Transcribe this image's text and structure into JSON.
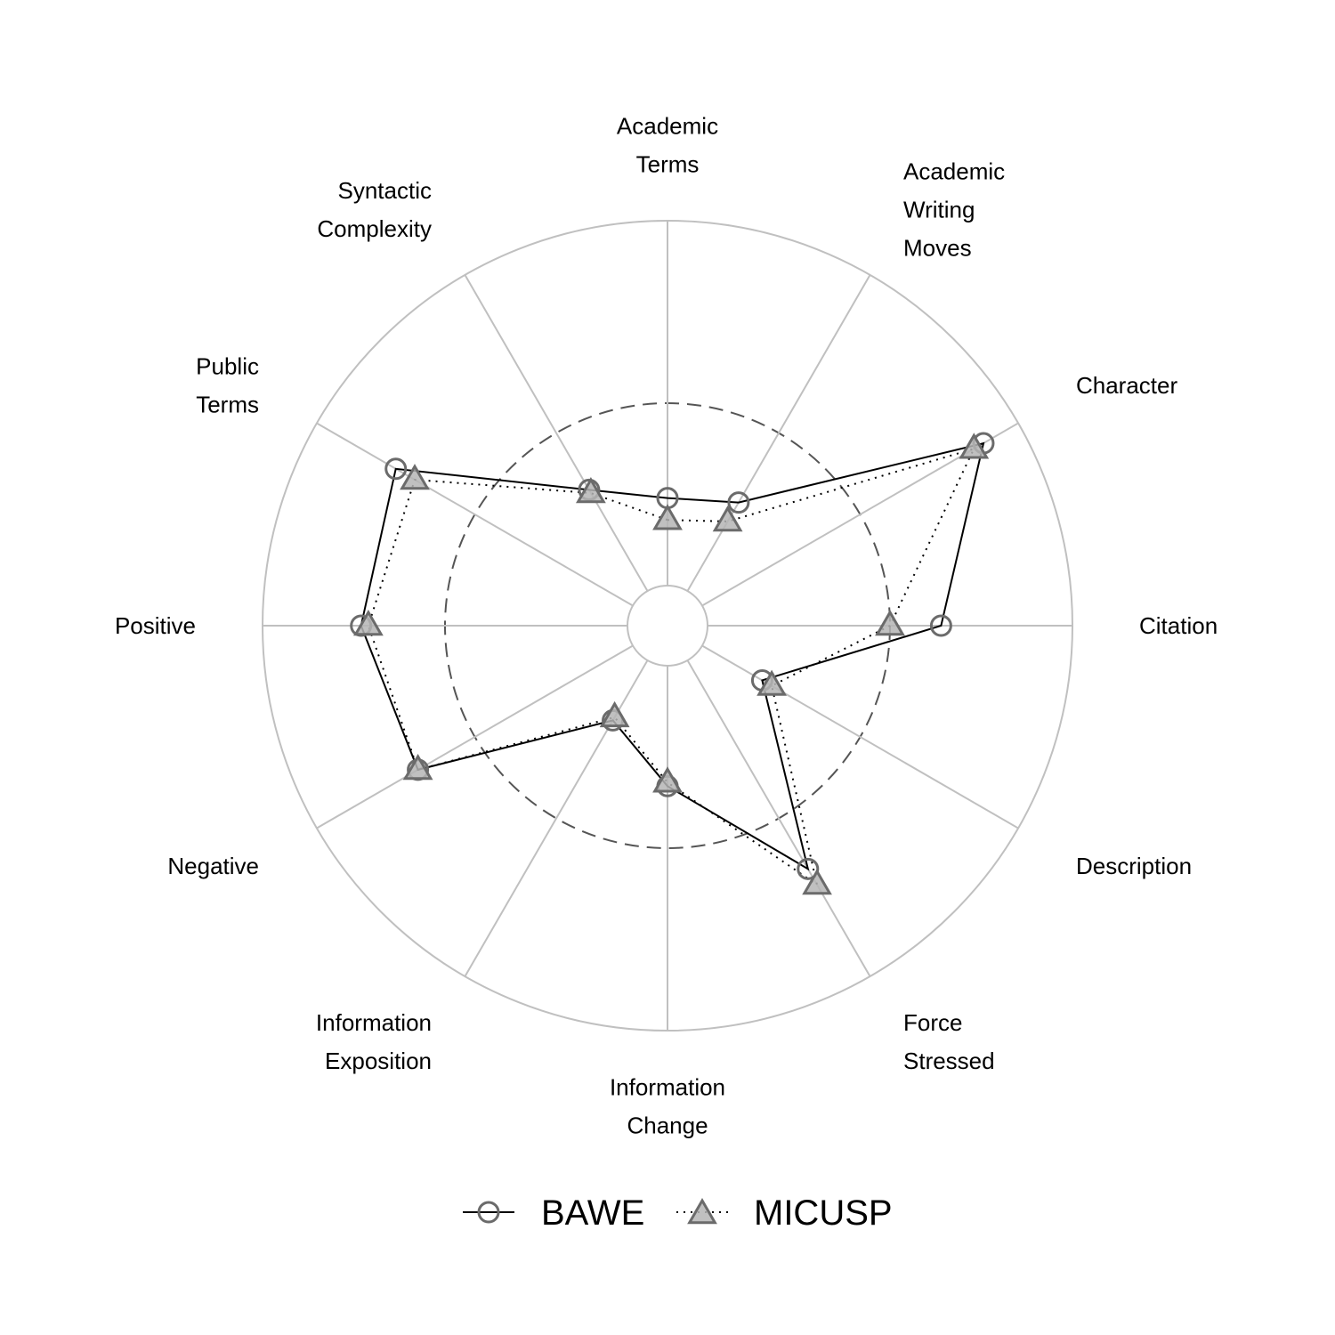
{
  "chart_data": {
    "type": "radar",
    "title": "",
    "axes": [
      [
        "Academic",
        "Terms"
      ],
      [
        "Academic",
        "Writing",
        "Moves"
      ],
      [
        "Character"
      ],
      [
        "Citation"
      ],
      [
        "Description"
      ],
      [
        "Force",
        "Stressed"
      ],
      [
        "Information",
        "Change"
      ],
      [
        "Information",
        "Exposition"
      ],
      [
        "Negative"
      ],
      [
        "Positive"
      ],
      [
        "Public",
        "Terms"
      ],
      [
        "Syntactic",
        "Complexity"
      ]
    ],
    "rlim": [
      0,
      1
    ],
    "reference_circle": 0.5,
    "grid": true,
    "legend_position": "bottom",
    "series": [
      {
        "name": "BAWE",
        "marker": "circle",
        "line": "solid",
        "values": [
          0.24,
          0.28,
          0.89,
          0.64,
          0.19,
          0.66,
          0.33,
          0.19,
          0.68,
          0.73,
          0.75,
          0.32
        ]
      },
      {
        "name": "MICUSP",
        "marker": "triangle",
        "line": "dotted",
        "values": [
          0.18,
          0.22,
          0.86,
          0.5,
          0.22,
          0.71,
          0.32,
          0.18,
          0.68,
          0.71,
          0.69,
          0.31
        ]
      }
    ],
    "colors": {
      "grid": "#c0c0c0",
      "reference": "#555555",
      "line": "#000000",
      "marker_edge": "#6b6b6b",
      "marker_fill": "#b5b5b5"
    }
  }
}
